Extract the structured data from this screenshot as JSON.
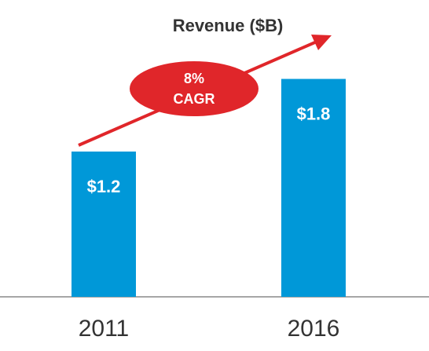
{
  "chart_data": {
    "type": "bar",
    "title": "Revenue ($B)",
    "categories": [
      "2011",
      "2016"
    ],
    "values": [
      1.2,
      1.8
    ],
    "value_labels": [
      "$1.2",
      "$1.8"
    ],
    "color": "#0098d8",
    "ylim": [
      0,
      2.4
    ],
    "annotation": "8% CAGR",
    "annotation_color": "#e0262a"
  }
}
